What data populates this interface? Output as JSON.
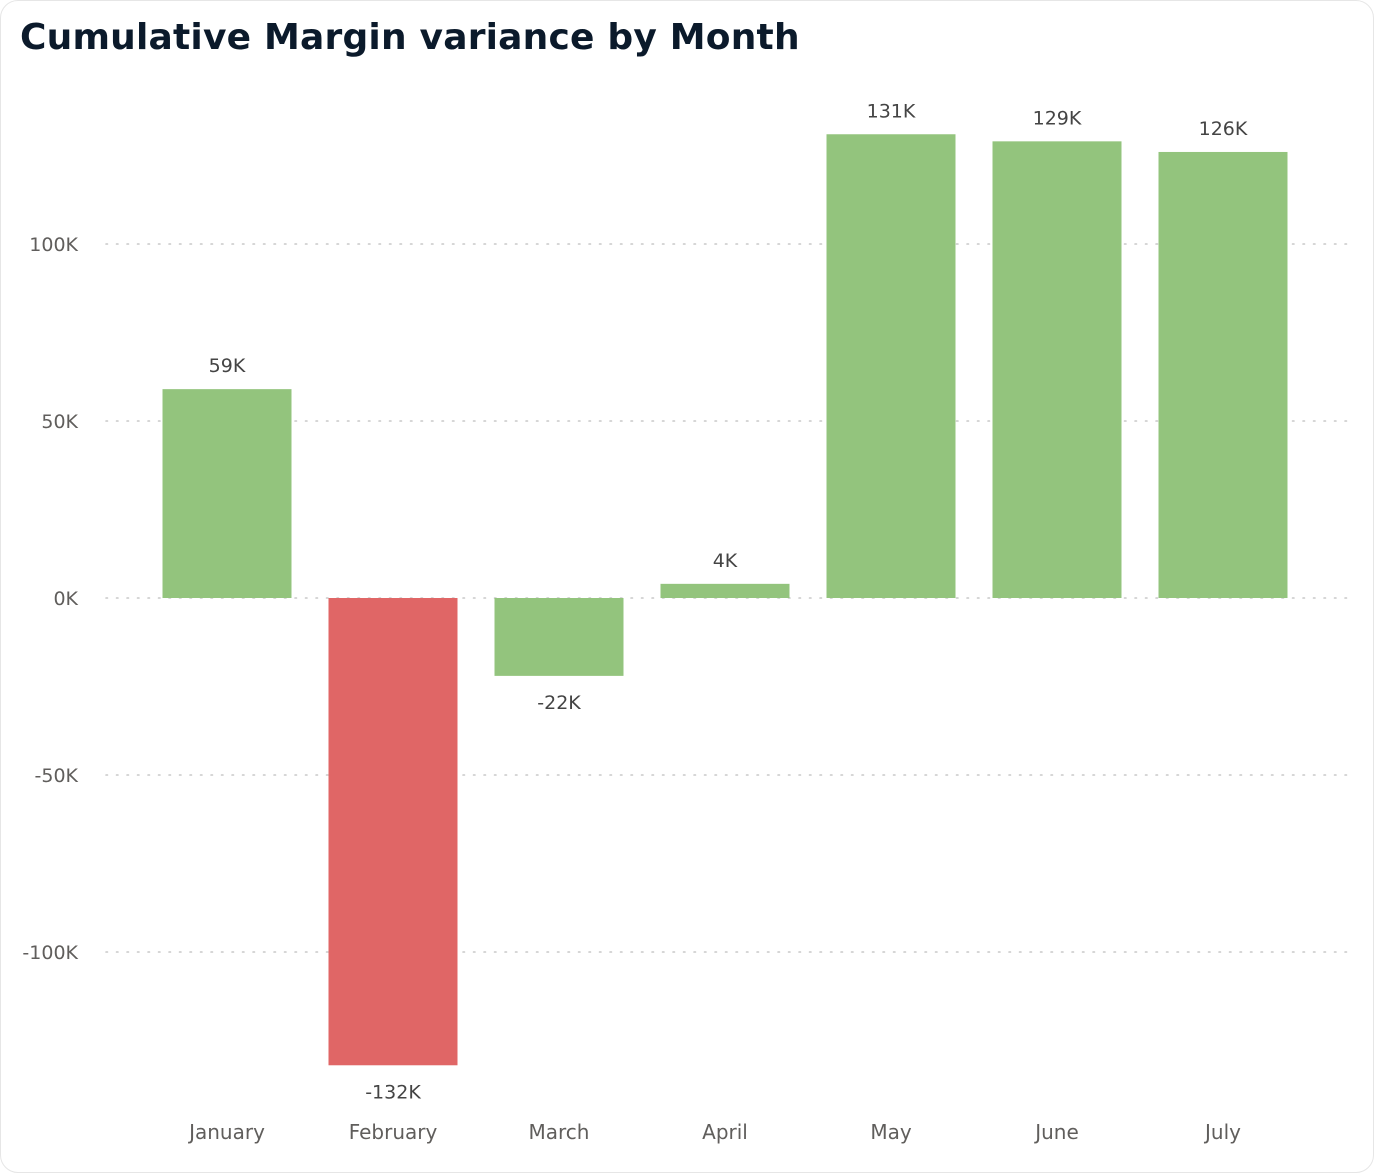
{
  "title": "Cumulative Margin variance by Month",
  "chart_data": {
    "type": "bar",
    "title": "Cumulative Margin variance by Month",
    "xlabel": "",
    "ylabel": "",
    "categories": [
      "January",
      "February",
      "March",
      "April",
      "May",
      "June",
      "July"
    ],
    "values": [
      59,
      -132,
      -22,
      4,
      131,
      129,
      126
    ],
    "data_labels": [
      "59K",
      "-132K",
      "-22K",
      "4K",
      "131K",
      "129K",
      "126K"
    ],
    "value_unit": "K",
    "bar_colors": [
      "#93c47d",
      "#e06666",
      "#93c47d",
      "#93c47d",
      "#93c47d",
      "#93c47d",
      "#93c47d"
    ],
    "y_ticks": [
      100,
      50,
      0,
      -50,
      -100
    ],
    "y_tick_labels": [
      "100K",
      "50K",
      "0K",
      "-50K",
      "-100K"
    ],
    "ylim": [
      -140,
      144
    ],
    "grid": true,
    "legend": "none"
  },
  "colors": {
    "positive": "#93c47d",
    "negative": "#e06666",
    "title": "#0b1a2b",
    "axis_text": "#605e5c"
  }
}
